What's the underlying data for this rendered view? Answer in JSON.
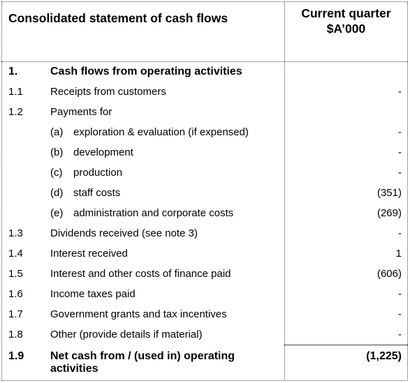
{
  "header": {
    "title": "Consolidated statement of cash flows",
    "column_title": "Current quarter",
    "column_unit": "$A’000"
  },
  "rows": [
    {
      "num": "1.",
      "label": "Cash flows from operating activities"
    },
    {
      "num": "1.1",
      "label": "Receipts from customers",
      "value": "-"
    },
    {
      "num": "1.2",
      "label": "Payments for"
    },
    {
      "sub": "(a)",
      "label": "exploration & evaluation (if expensed)",
      "value": "-"
    },
    {
      "sub": "(b)",
      "label": "development",
      "value": "-"
    },
    {
      "sub": "(c)",
      "label": "production",
      "value": "-"
    },
    {
      "sub": "(d)",
      "label": "staff costs",
      "value": "(351)"
    },
    {
      "sub": "(e)",
      "label": "administration and corporate costs",
      "value": "(269)"
    },
    {
      "num": "1.3",
      "label": "Dividends received (see note 3)",
      "value": "-"
    },
    {
      "num": "1.4",
      "label": "Interest received",
      "value": "1"
    },
    {
      "num": "1.5",
      "label": "Interest and other costs of finance paid",
      "value": "(606)"
    },
    {
      "num": "1.6",
      "label": "Income taxes paid",
      "value": "-"
    },
    {
      "num": "1.7",
      "label": "Government grants and tax incentives",
      "value": "-"
    },
    {
      "num": "1.8",
      "label": "Other (provide details if material)",
      "value": "-"
    },
    {
      "num": "1.9",
      "label": "Net cash from / (used in) operating activities",
      "value": "(1,225)"
    }
  ]
}
